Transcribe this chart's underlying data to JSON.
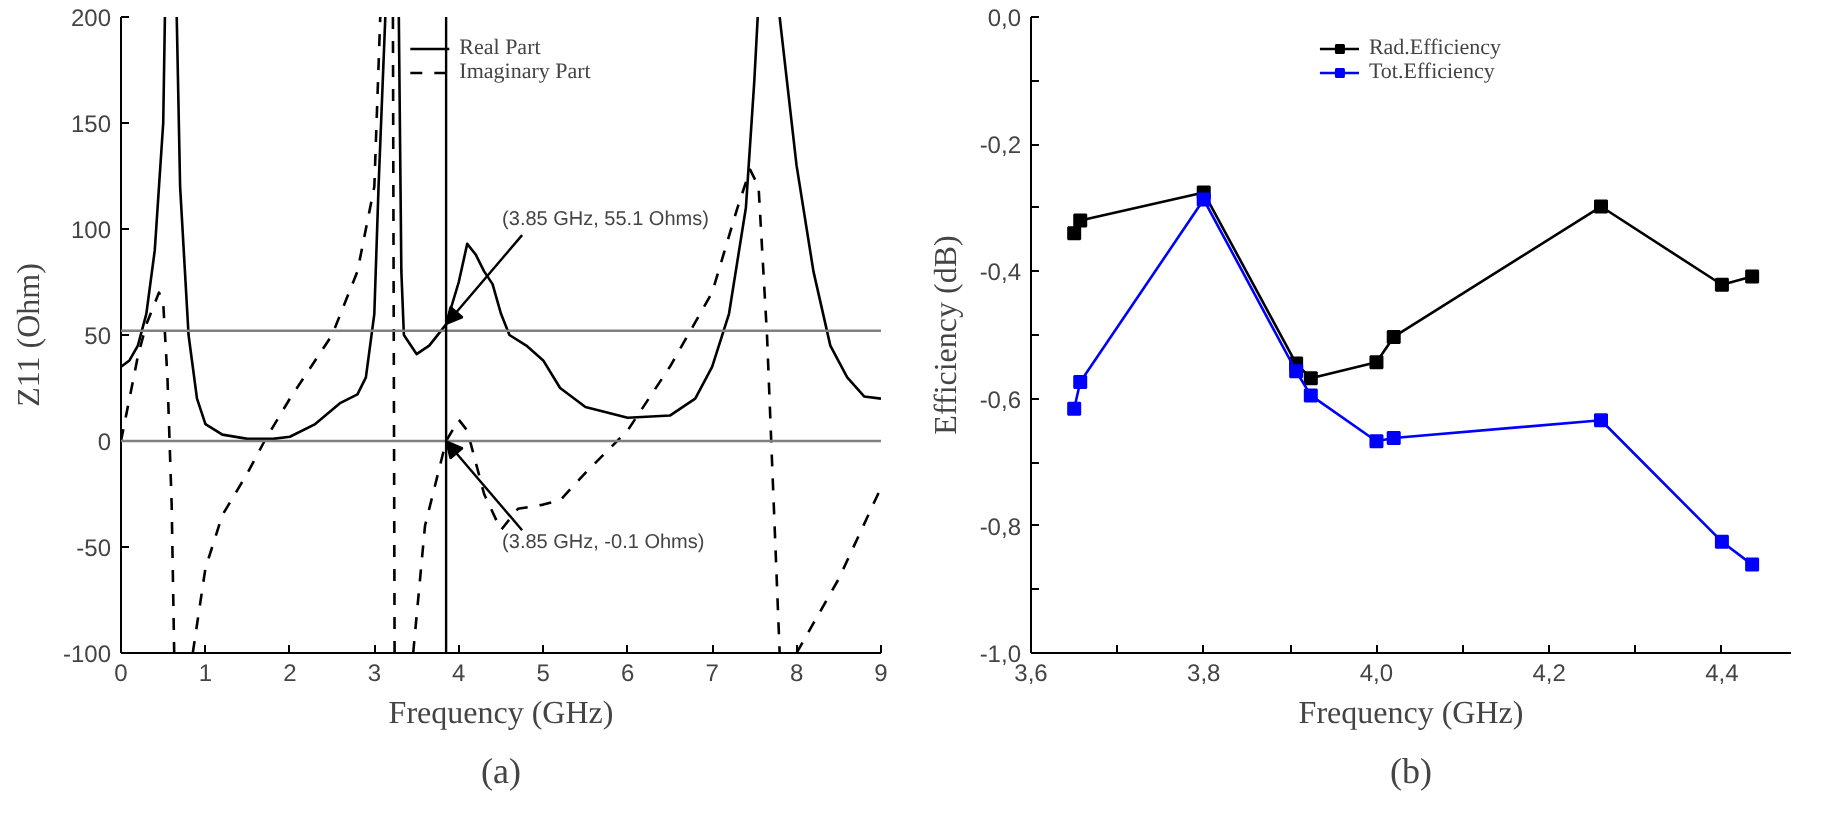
{
  "chart_data": [
    {
      "type": "line",
      "xlabel": "Frequency (GHz)",
      "ylabel": "Z11 (Ohm)",
      "xlim": [
        0,
        9
      ],
      "ylim": [
        -100,
        200
      ],
      "xticks": [
        0,
        1,
        2,
        3,
        4,
        5,
        6,
        7,
        8,
        9
      ],
      "yticks": [
        -100,
        -50,
        0,
        50,
        100,
        150,
        200
      ],
      "grid": false,
      "legend": "top",
      "annotations": [
        {
          "text": "(3.85 GHz, 55.1 Ohms)",
          "x": 3.85,
          "y": 55.1
        },
        {
          "text": "(3.85 GHz, -0.1 Ohms)",
          "x": 3.85,
          "y": -0.1
        },
        "(a)"
      ],
      "ref_lines": [
        {
          "axis": "y",
          "value": 52,
          "color": "#808080"
        },
        {
          "axis": "y",
          "value": 0,
          "color": "#808080"
        },
        {
          "axis": "x",
          "value": 3.85,
          "color": "#000000"
        }
      ],
      "series": [
        {
          "name": "Real Part",
          "color": "#000000",
          "line_style": "solid",
          "x": [
            0,
            0.1,
            0.2,
            0.3,
            0.4,
            0.5,
            0.52,
            0.59,
            0.66,
            0.7,
            0.8,
            0.9,
            1.0,
            1.2,
            1.5,
            1.8,
            2.0,
            2.3,
            2.6,
            2.8,
            2.9,
            3.0,
            3.05,
            3.13,
            3.21,
            3.29,
            3.32,
            3.35,
            3.5,
            3.65,
            3.85,
            4.0,
            4.1,
            4.2,
            4.3,
            4.4,
            4.5,
            4.6,
            4.8,
            5.0,
            5.2,
            5.5,
            6.0,
            6.5,
            6.8,
            7.0,
            7.2,
            7.4,
            7.5,
            7.54,
            7.67,
            7.8,
            8.0,
            8.2,
            8.4,
            8.6,
            8.8,
            9.0
          ],
          "values": [
            35,
            38,
            45,
            60,
            90,
            150,
            200,
            null,
            200,
            120,
            50,
            20,
            8,
            3,
            1,
            1,
            2,
            8,
            18,
            22,
            30,
            60,
            120,
            200,
            null,
            200,
            80,
            50,
            41,
            45,
            55,
            75,
            93,
            88,
            80,
            74,
            60,
            50,
            45,
            38,
            25,
            16,
            11,
            12,
            20,
            35,
            60,
            110,
            170,
            200,
            null,
            200,
            130,
            80,
            45,
            30,
            21,
            20
          ]
        },
        {
          "name": "Imaginary Part",
          "color": "#000000",
          "line_style": "dashed",
          "x": [
            0,
            0.1,
            0.2,
            0.3,
            0.45,
            0.5,
            0.55,
            0.6,
            0.63,
            0.74,
            0.85,
            1.0,
            1.2,
            1.5,
            1.7,
            2.0,
            2.5,
            2.8,
            3.0,
            3.07,
            3.15,
            3.22,
            3.24,
            3.35,
            3.46,
            3.6,
            3.8,
            3.85,
            4.0,
            4.1,
            4.3,
            4.5,
            4.7,
            5.0,
            5.2,
            5.5,
            6.0,
            6.5,
            7.0,
            7.3,
            7.45,
            7.55,
            7.65,
            7.75,
            7.8,
            7.9,
            8.0,
            8.5,
            9.0
          ],
          "values": [
            0,
            20,
            40,
            55,
            70,
            65,
            30,
            -30,
            -100,
            null,
            -100,
            -60,
            -35,
            -15,
            0,
            20,
            50,
            80,
            120,
            200,
            null,
            200,
            -100,
            null,
            -100,
            -40,
            -8,
            0,
            10,
            5,
            -25,
            -42,
            -32,
            -30,
            -28,
            -15,
            5,
            35,
            70,
            110,
            128,
            120,
            50,
            -50,
            -100,
            null,
            -100,
            -65,
            -22
          ]
        }
      ]
    },
    {
      "type": "line",
      "xlabel": "Frequency (GHz)",
      "ylabel": "Efficiency (dB)",
      "xlim": [
        3.6,
        4.48
      ],
      "ylim": [
        -1.0,
        0.0
      ],
      "marker": "square",
      "grid": false,
      "legend": "top",
      "annotations": [
        "(b)"
      ],
      "xticks": [
        {
          "value": 3.6,
          "label": "3,6"
        },
        {
          "value": 3.7,
          "label": null
        },
        {
          "value": 3.8,
          "label": "3,8"
        },
        {
          "value": 3.9,
          "label": null
        },
        {
          "value": 4.0,
          "label": "4,0"
        },
        {
          "value": 4.1,
          "label": null
        },
        {
          "value": 4.2,
          "label": "4,2"
        },
        {
          "value": 4.3,
          "label": null
        },
        {
          "value": 4.4,
          "label": "4,4"
        }
      ],
      "yticks": [
        {
          "value": -1.0,
          "label": "-1,0"
        },
        {
          "value": -0.9,
          "label": null
        },
        {
          "value": -0.8,
          "label": "-0,8"
        },
        {
          "value": -0.7,
          "label": null
        },
        {
          "value": -0.6,
          "label": "-0,6"
        },
        {
          "value": -0.5,
          "label": null
        },
        {
          "value": -0.4,
          "label": "-0,4"
        },
        {
          "value": -0.3,
          "label": null
        },
        {
          "value": -0.2,
          "label": "-0,2"
        },
        {
          "value": -0.1,
          "label": null
        },
        {
          "value": 0.0,
          "label": "0,0"
        }
      ],
      "x": [
        3.65,
        3.657,
        3.8,
        3.907,
        3.924,
        4.0,
        4.02,
        4.26,
        4.4,
        4.435
      ],
      "series": [
        {
          "name": "Rad.Efficiency",
          "color": "#000000",
          "values": [
            -0.34,
            -0.32,
            -0.276,
            -0.545,
            -0.568,
            -0.543,
            -0.503,
            -0.298,
            -0.421,
            -0.408
          ]
        },
        {
          "name": "Tot.Efficiency",
          "color": "#0000ff",
          "values": [
            -0.616,
            -0.574,
            -0.287,
            -0.557,
            -0.595,
            -0.667,
            -0.662,
            -0.634,
            -0.825,
            -0.861
          ]
        }
      ]
    }
  ]
}
